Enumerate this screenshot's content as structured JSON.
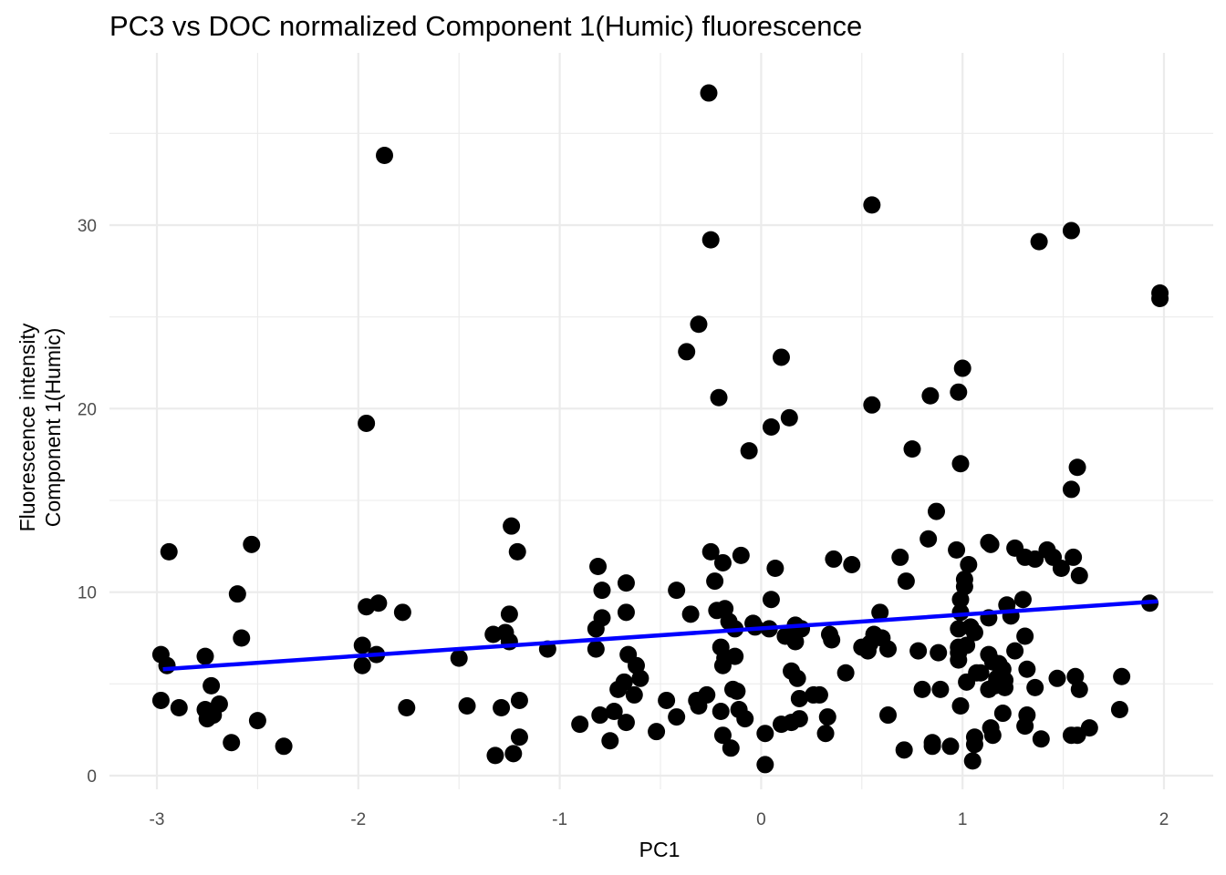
{
  "chart_data": {
    "type": "scatter",
    "title": "PC3 vs DOC normalized Component 1(Humic) fluorescence",
    "xlabel": "PC1",
    "ylabel_lines": [
      "Fluorescence intensity",
      "Component 1(Humic)"
    ],
    "xlim": [
      -3.2,
      2.15
    ],
    "ylim": [
      -0.8,
      39.0
    ],
    "x_ticks": [
      -3,
      -2,
      -1,
      0,
      1,
      2
    ],
    "x_tick_labels": [
      "-3",
      "-2",
      "-1",
      "0",
      "1",
      "2"
    ],
    "y_ticks": [
      0,
      10,
      20,
      30
    ],
    "y_tick_labels": [
      "0",
      "10",
      "20",
      "30"
    ],
    "grid": true,
    "point_color": "#000000",
    "trend_color": "#0000ff",
    "trend_line": {
      "x": [
        -2.97,
        1.97
      ],
      "y": [
        5.8,
        9.5
      ]
    },
    "points": [
      [
        -2.98,
        6.6
      ],
      [
        -2.95,
        6.0
      ],
      [
        -2.94,
        12.2
      ],
      [
        -2.98,
        4.1
      ],
      [
        -2.89,
        3.7
      ],
      [
        -2.76,
        6.5
      ],
      [
        -2.75,
        3.1
      ],
      [
        -2.76,
        3.6
      ],
      [
        -2.73,
        4.9
      ],
      [
        -2.72,
        3.3
      ],
      [
        -2.69,
        3.9
      ],
      [
        -2.63,
        1.8
      ],
      [
        -2.6,
        9.9
      ],
      [
        -2.58,
        7.5
      ],
      [
        -2.53,
        12.6
      ],
      [
        -2.5,
        3.0
      ],
      [
        -2.37,
        1.6
      ],
      [
        -1.98,
        7.1
      ],
      [
        -1.98,
        6.0
      ],
      [
        -1.96,
        9.2
      ],
      [
        -1.96,
        19.2
      ],
      [
        -1.91,
        6.6
      ],
      [
        -1.9,
        9.4
      ],
      [
        -1.87,
        33.8
      ],
      [
        -1.78,
        8.9
      ],
      [
        -1.76,
        3.7
      ],
      [
        -1.5,
        6.4
      ],
      [
        -1.46,
        3.8
      ],
      [
        -1.33,
        7.7
      ],
      [
        -1.32,
        1.1
      ],
      [
        -1.29,
        3.7
      ],
      [
        -1.27,
        7.8
      ],
      [
        -1.25,
        7.3
      ],
      [
        -1.25,
        8.8
      ],
      [
        -1.24,
        13.6
      ],
      [
        -1.23,
        1.2
      ],
      [
        -1.21,
        12.2
      ],
      [
        -1.2,
        4.1
      ],
      [
        -1.2,
        2.1
      ],
      [
        -1.06,
        6.9
      ],
      [
        -0.9,
        2.8
      ],
      [
        -0.82,
        8.0
      ],
      [
        -0.81,
        11.4
      ],
      [
        -0.82,
        6.9
      ],
      [
        -0.8,
        3.3
      ],
      [
        -0.79,
        10.1
      ],
      [
        -0.79,
        8.6
      ],
      [
        -0.75,
        1.9
      ],
      [
        -0.73,
        3.5
      ],
      [
        -0.71,
        4.7
      ],
      [
        -0.68,
        5.1
      ],
      [
        -0.67,
        8.9
      ],
      [
        -0.67,
        10.5
      ],
      [
        -0.67,
        2.9
      ],
      [
        -0.66,
        6.6
      ],
      [
        -0.63,
        4.4
      ],
      [
        -0.62,
        6.0
      ],
      [
        -0.6,
        5.3
      ],
      [
        -0.52,
        2.4
      ],
      [
        -0.47,
        4.1
      ],
      [
        -0.42,
        10.1
      ],
      [
        -0.42,
        3.2
      ],
      [
        -0.37,
        23.1
      ],
      [
        -0.35,
        8.8
      ],
      [
        -0.32,
        4.1
      ],
      [
        -0.31,
        3.8
      ],
      [
        -0.31,
        24.6
      ],
      [
        -0.26,
        37.2
      ],
      [
        -0.27,
        4.4
      ],
      [
        -0.25,
        12.2
      ],
      [
        -0.25,
        29.2
      ],
      [
        -0.23,
        10.6
      ],
      [
        -0.22,
        9.0
      ],
      [
        -0.21,
        20.6
      ],
      [
        -0.2,
        7.0
      ],
      [
        -0.2,
        3.5
      ],
      [
        -0.19,
        2.2
      ],
      [
        -0.19,
        6.0
      ],
      [
        -0.18,
        6.4
      ],
      [
        -0.19,
        11.6
      ],
      [
        -0.18,
        9.1
      ],
      [
        -0.16,
        8.4
      ],
      [
        -0.15,
        1.5
      ],
      [
        -0.14,
        4.7
      ],
      [
        -0.13,
        8.0
      ],
      [
        -0.13,
        6.5
      ],
      [
        -0.12,
        4.6
      ],
      [
        -0.11,
        3.6
      ],
      [
        -0.1,
        12.0
      ],
      [
        -0.08,
        3.1
      ],
      [
        -0.06,
        17.7
      ],
      [
        -0.04,
        8.3
      ],
      [
        -0.03,
        8.1
      ],
      [
        0.02,
        2.3
      ],
      [
        0.02,
        0.6
      ],
      [
        0.04,
        8.0
      ],
      [
        0.05,
        19.0
      ],
      [
        0.05,
        9.6
      ],
      [
        0.07,
        11.3
      ],
      [
        0.1,
        22.8
      ],
      [
        0.1,
        2.8
      ],
      [
        0.12,
        7.6
      ],
      [
        0.14,
        19.5
      ],
      [
        0.15,
        5.7
      ],
      [
        0.15,
        2.9
      ],
      [
        0.17,
        8.2
      ],
      [
        0.17,
        7.3
      ],
      [
        0.18,
        5.3
      ],
      [
        0.19,
        4.2
      ],
      [
        0.19,
        3.1
      ],
      [
        0.2,
        8.0
      ],
      [
        0.26,
        4.4
      ],
      [
        0.29,
        4.4
      ],
      [
        0.32,
        2.3
      ],
      [
        0.33,
        3.2
      ],
      [
        0.34,
        7.7
      ],
      [
        0.35,
        7.4
      ],
      [
        0.36,
        11.8
      ],
      [
        0.42,
        5.6
      ],
      [
        0.45,
        11.5
      ],
      [
        0.5,
        7.0
      ],
      [
        0.53,
        6.8
      ],
      [
        0.54,
        7.2
      ],
      [
        0.55,
        20.2
      ],
      [
        0.55,
        31.1
      ],
      [
        0.56,
        7.7
      ],
      [
        0.59,
        8.9
      ],
      [
        0.6,
        7.5
      ],
      [
        0.63,
        6.9
      ],
      [
        0.63,
        3.3
      ],
      [
        0.69,
        11.9
      ],
      [
        0.71,
        1.4
      ],
      [
        0.72,
        10.6
      ],
      [
        0.75,
        17.8
      ],
      [
        0.78,
        6.8
      ],
      [
        0.8,
        4.7
      ],
      [
        0.84,
        20.7
      ],
      [
        0.83,
        12.9
      ],
      [
        0.85,
        1.8
      ],
      [
        0.85,
        1.6
      ],
      [
        0.87,
        14.4
      ],
      [
        0.88,
        6.7
      ],
      [
        0.89,
        4.7
      ],
      [
        0.94,
        1.6
      ],
      [
        0.97,
        12.3
      ],
      [
        0.98,
        8.0
      ],
      [
        0.98,
        6.3
      ],
      [
        0.98,
        7.0
      ],
      [
        0.98,
        20.9
      ],
      [
        0.98,
        6.7
      ],
      [
        0.99,
        9.6
      ],
      [
        0.99,
        8.9
      ],
      [
        0.99,
        3.8
      ],
      [
        0.99,
        17.0
      ],
      [
        1.0,
        22.2
      ],
      [
        1.01,
        10.3
      ],
      [
        1.01,
        10.7
      ],
      [
        1.02,
        5.1
      ],
      [
        1.02,
        7.1
      ],
      [
        1.03,
        11.5
      ],
      [
        1.04,
        8.1
      ],
      [
        1.05,
        0.8
      ],
      [
        1.06,
        2.1
      ],
      [
        1.06,
        1.7
      ],
      [
        1.06,
        7.8
      ],
      [
        1.07,
        5.6
      ],
      [
        1.09,
        5.6
      ],
      [
        1.13,
        8.6
      ],
      [
        1.13,
        12.7
      ],
      [
        1.14,
        12.6
      ],
      [
        1.13,
        6.6
      ],
      [
        1.13,
        4.7
      ],
      [
        1.14,
        2.6
      ],
      [
        1.15,
        6.2
      ],
      [
        1.15,
        2.2
      ],
      [
        1.16,
        4.9
      ],
      [
        1.17,
        5.3
      ],
      [
        1.18,
        6.1
      ],
      [
        1.19,
        5.8
      ],
      [
        1.2,
        5.8
      ],
      [
        1.2,
        3.4
      ],
      [
        1.21,
        5.2
      ],
      [
        1.21,
        4.8
      ],
      [
        1.22,
        9.3
      ],
      [
        1.24,
        8.7
      ],
      [
        1.26,
        12.4
      ],
      [
        1.26,
        6.8
      ],
      [
        1.3,
        9.6
      ],
      [
        1.31,
        11.9
      ],
      [
        1.31,
        2.7
      ],
      [
        1.31,
        7.6
      ],
      [
        1.32,
        3.3
      ],
      [
        1.32,
        5.8
      ],
      [
        1.36,
        11.8
      ],
      [
        1.36,
        4.8
      ],
      [
        1.38,
        29.1
      ],
      [
        1.39,
        2.0
      ],
      [
        1.42,
        12.3
      ],
      [
        1.45,
        11.9
      ],
      [
        1.47,
        5.3
      ],
      [
        1.49,
        11.3
      ],
      [
        1.54,
        29.7
      ],
      [
        1.54,
        15.6
      ],
      [
        1.55,
        11.9
      ],
      [
        1.54,
        2.2
      ],
      [
        1.56,
        5.4
      ],
      [
        1.57,
        16.8
      ],
      [
        1.57,
        2.2
      ],
      [
        1.58,
        4.7
      ],
      [
        1.58,
        10.9
      ],
      [
        1.63,
        2.6
      ],
      [
        1.78,
        3.6
      ],
      [
        1.79,
        5.4
      ],
      [
        1.93,
        9.4
      ],
      [
        1.98,
        26.3
      ],
      [
        1.98,
        26.0
      ]
    ]
  }
}
